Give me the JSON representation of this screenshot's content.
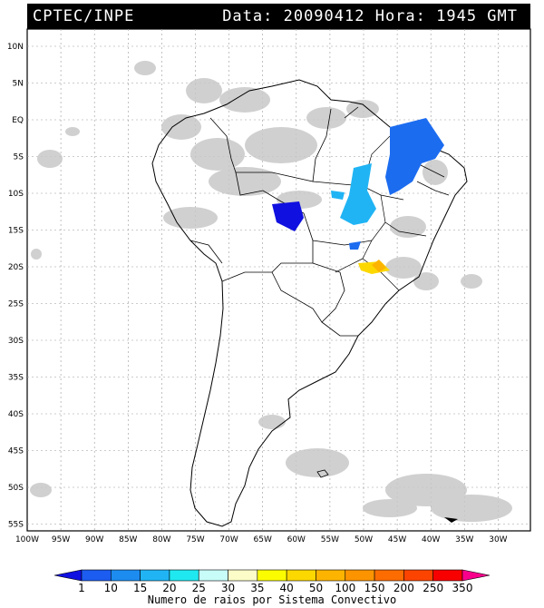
{
  "header": {
    "source": "CPTEC/INPE",
    "datetime": "Data: 20090412 Hora: 1945 GMT"
  },
  "map": {
    "lat_labels": [
      "10N",
      "5N",
      "EQ",
      "5S",
      "10S",
      "15S",
      "20S",
      "25S",
      "30S",
      "35S",
      "40S",
      "45S",
      "50S",
      "55S"
    ],
    "lon_labels": [
      "100W",
      "95W",
      "90W",
      "85W",
      "80W",
      "75W",
      "70W",
      "65W",
      "60W",
      "55W",
      "50W",
      "45W",
      "40W",
      "35W",
      "30W"
    ]
  },
  "legend": {
    "values": [
      "1",
      "10",
      "15",
      "20",
      "25",
      "30",
      "35",
      "40",
      "50",
      "100",
      "150",
      "200",
      "250",
      "350"
    ],
    "colors": [
      "#1010e0",
      "#1c5cf0",
      "#1c8cf0",
      "#20b4f4",
      "#20e8f0",
      "#c8fcf8",
      "#fcfcc8",
      "#fcfc00",
      "#fcd800",
      "#fcb400",
      "#fc9400",
      "#fc6c00",
      "#fc4400",
      "#f80000",
      "#f8008c"
    ],
    "caption": "Numero de raios por Sistema Convectivo"
  }
}
